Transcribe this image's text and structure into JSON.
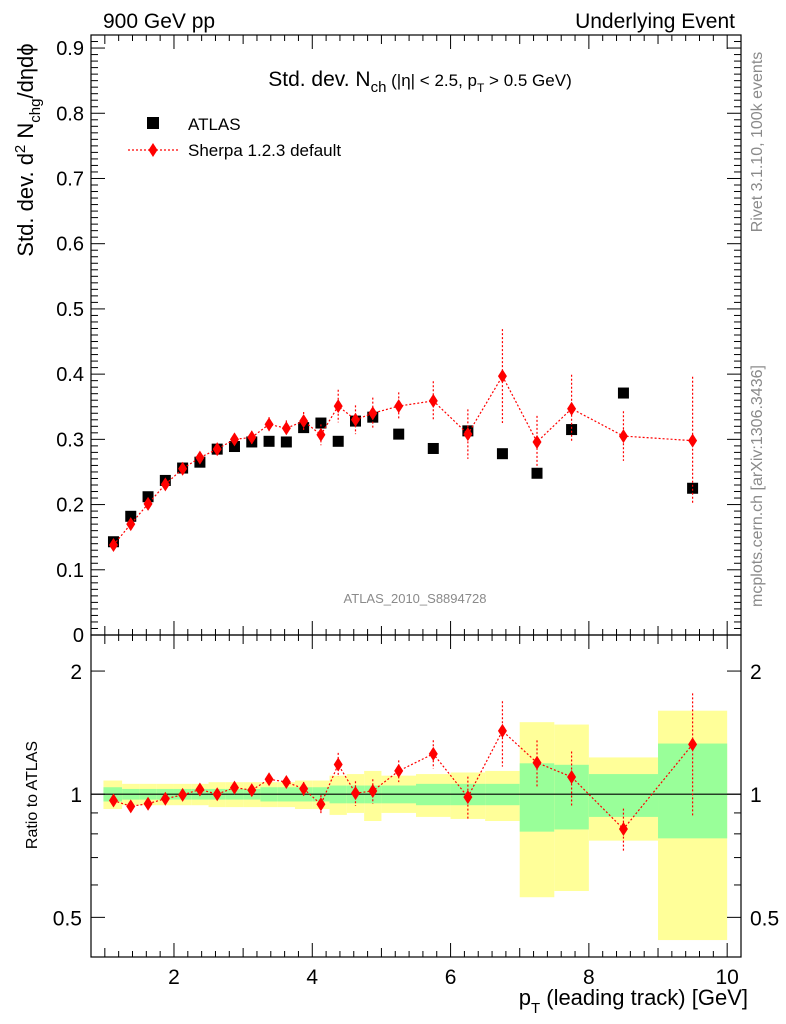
{
  "header": {
    "left": "900 GeV pp",
    "right": "Underlying Event"
  },
  "side_labels": {
    "top": "Rivet 3.1.10,  100k events",
    "bottom": "mcplots.cern.ch [arXiv:1306.3436]"
  },
  "chart_data": [
    {
      "type": "scatter",
      "title": {
        "main": "Std. dev. N",
        "sub": "ch",
        "tail": " (|η| < 2.5, p",
        "tail_sub": "T",
        "tail_end": " > 0.5 GeV)"
      },
      "ylabel": {
        "a": "Std. dev. d",
        "sup": "2",
        "b": " N",
        "sub": "chg",
        "c": "/dηdϕ"
      },
      "watermark": "ATLAS_2010_S8894728",
      "xlim": [
        0.8,
        10.2
      ],
      "ylim": [
        0,
        0.92
      ],
      "yticks": [
        0,
        0.1,
        0.2,
        0.3,
        0.4,
        0.5,
        0.6,
        0.7,
        0.8,
        0.9
      ],
      "ytick_labels": [
        "0",
        "0.1",
        "0.2",
        "0.3",
        "0.4",
        "0.5",
        "0.6",
        "0.7",
        "0.8",
        "0.9"
      ],
      "legend": [
        "ATLAS",
        "Sherpa 1.2.3 default"
      ],
      "legend_position": "top-left",
      "series": [
        {
          "name": "ATLAS",
          "marker": "square",
          "color": "#000000",
          "x": [
            1.125,
            1.375,
            1.625,
            1.875,
            2.125,
            2.375,
            2.625,
            2.875,
            3.125,
            3.375,
            3.625,
            3.875,
            4.125,
            4.375,
            4.625,
            4.875,
            5.25,
            5.75,
            6.25,
            6.75,
            7.25,
            7.75,
            8.5,
            9.5
          ],
          "values": [
            0.143,
            0.182,
            0.212,
            0.237,
            0.256,
            0.265,
            0.285,
            0.289,
            0.296,
            0.297,
            0.296,
            0.318,
            0.325,
            0.297,
            0.328,
            0.334,
            0.308,
            0.286,
            0.313,
            0.278,
            0.248,
            0.315,
            0.371,
            0.225
          ]
        },
        {
          "name": "Sherpa 1.2.3 default",
          "marker": "diamond",
          "color": "#ff0000",
          "x": [
            1.125,
            1.375,
            1.625,
            1.875,
            2.125,
            2.375,
            2.625,
            2.875,
            3.125,
            3.375,
            3.625,
            3.875,
            4.125,
            4.375,
            4.625,
            4.875,
            5.25,
            5.75,
            6.25,
            6.75,
            7.25,
            7.75,
            8.5,
            9.5
          ],
          "values": [
            0.138,
            0.17,
            0.201,
            0.231,
            0.255,
            0.272,
            0.285,
            0.3,
            0.303,
            0.323,
            0.317,
            0.328,
            0.307,
            0.351,
            0.33,
            0.34,
            0.351,
            0.359,
            0.308,
            0.397,
            0.296,
            0.347,
            0.305,
            0.298
          ],
          "errors": [
            0.005,
            0.005,
            0.006,
            0.006,
            0.007,
            0.008,
            0.008,
            0.009,
            0.01,
            0.011,
            0.012,
            0.014,
            0.016,
            0.025,
            0.022,
            0.024,
            0.021,
            0.03,
            0.038,
            0.072,
            0.04,
            0.052,
            0.038,
            0.098
          ]
        }
      ]
    },
    {
      "type": "scatter",
      "ylabel": "Ratio to ATLAS",
      "xlabel": {
        "a": "p",
        "sub": "T",
        "b": " (leading track) [GeV]"
      },
      "xlim": [
        0.8,
        10.2
      ],
      "ylim": [
        0.4,
        2.45
      ],
      "xticks": [
        2,
        4,
        6,
        8,
        10
      ],
      "xtick_labels": [
        "2",
        "4",
        "6",
        "8",
        "10"
      ],
      "yticks": [
        0.5,
        1,
        2
      ],
      "ytick_labels": [
        "0.5",
        "1",
        "2"
      ],
      "reference_line": 1,
      "bands": {
        "bins": [
          [
            0.98,
            1.25
          ],
          [
            1.25,
            1.5
          ],
          [
            1.5,
            1.75
          ],
          [
            1.75,
            2.0
          ],
          [
            2.0,
            2.25
          ],
          [
            2.25,
            2.5
          ],
          [
            2.5,
            2.75
          ],
          [
            2.75,
            3.0
          ],
          [
            3.0,
            3.25
          ],
          [
            3.25,
            3.5
          ],
          [
            3.5,
            3.75
          ],
          [
            3.75,
            4.0
          ],
          [
            4.0,
            4.25
          ],
          [
            4.25,
            4.5
          ],
          [
            4.5,
            4.75
          ],
          [
            4.75,
            5.0
          ],
          [
            5.0,
            5.5
          ],
          [
            5.5,
            6.0
          ],
          [
            6.0,
            6.5
          ],
          [
            6.5,
            7.0
          ],
          [
            7.0,
            7.5
          ],
          [
            7.5,
            8.0
          ],
          [
            8.0,
            9.0
          ],
          [
            9.0,
            10.0
          ]
        ],
        "green_lo": [
          0.96,
          0.97,
          0.97,
          0.97,
          0.97,
          0.97,
          0.97,
          0.97,
          0.97,
          0.96,
          0.96,
          0.96,
          0.96,
          0.95,
          0.95,
          0.95,
          0.95,
          0.94,
          0.94,
          0.94,
          0.81,
          0.82,
          0.88,
          0.78
        ],
        "green_hi": [
          1.04,
          1.03,
          1.03,
          1.03,
          1.03,
          1.03,
          1.03,
          1.03,
          1.03,
          1.04,
          1.04,
          1.04,
          1.04,
          1.05,
          1.05,
          1.05,
          1.05,
          1.06,
          1.06,
          1.06,
          1.19,
          1.18,
          1.12,
          1.33
        ],
        "yellow_lo": [
          0.92,
          0.94,
          0.94,
          0.94,
          0.94,
          0.94,
          0.93,
          0.93,
          0.93,
          0.93,
          0.93,
          0.92,
          0.92,
          0.89,
          0.9,
          0.86,
          0.9,
          0.88,
          0.87,
          0.86,
          0.56,
          0.58,
          0.77,
          0.44
        ],
        "yellow_hi": [
          1.08,
          1.06,
          1.06,
          1.06,
          1.06,
          1.06,
          1.07,
          1.07,
          1.07,
          1.07,
          1.07,
          1.08,
          1.08,
          1.11,
          1.12,
          1.14,
          1.11,
          1.12,
          1.13,
          1.14,
          1.5,
          1.48,
          1.23,
          1.6
        ],
        "green_color": "#99ff99",
        "yellow_color": "#ffff99"
      },
      "series": [
        {
          "name": "Sherpa 1.2.3 default",
          "marker": "diamond",
          "color": "#ff0000",
          "x": [
            1.125,
            1.375,
            1.625,
            1.875,
            2.125,
            2.375,
            2.625,
            2.875,
            3.125,
            3.375,
            3.625,
            3.875,
            4.125,
            4.375,
            4.625,
            4.875,
            5.25,
            5.75,
            6.25,
            6.75,
            7.25,
            7.75,
            8.5,
            9.5
          ],
          "values": [
            0.965,
            0.934,
            0.948,
            0.975,
            0.996,
            1.027,
            1.0,
            1.038,
            1.023,
            1.088,
            1.071,
            1.031,
            0.945,
            1.182,
            1.006,
            1.018,
            1.14,
            1.255,
            0.984,
            1.428,
            1.194,
            1.102,
            0.822,
            1.324
          ],
          "errors": [
            0.02,
            0.02,
            0.02,
            0.02,
            0.02,
            0.03,
            0.03,
            0.03,
            0.03,
            0.03,
            0.03,
            0.04,
            0.05,
            0.08,
            0.07,
            0.07,
            0.07,
            0.1,
            0.12,
            0.26,
            0.16,
            0.17,
            0.1,
            0.44
          ]
        }
      ]
    }
  ]
}
